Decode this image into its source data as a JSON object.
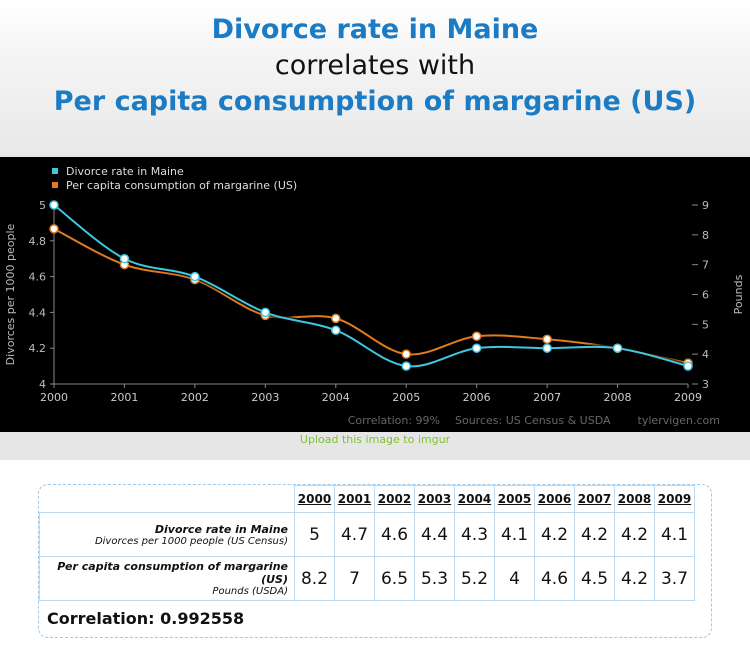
{
  "titles": {
    "line1": "Divorce rate in Maine",
    "line2": "correlates with",
    "line3": "Per capita consumption of margarine (US)"
  },
  "upload_link": "Upload this image to imgur",
  "chart_data": {
    "type": "line",
    "x": [
      2000,
      2001,
      2002,
      2003,
      2004,
      2005,
      2006,
      2007,
      2008,
      2009
    ],
    "series": [
      {
        "name": "Divorce rate in Maine",
        "axis": "left",
        "color": "#3ec8e0",
        "values": [
          5,
          4.7,
          4.6,
          4.4,
          4.3,
          4.1,
          4.2,
          4.2,
          4.2,
          4.1
        ]
      },
      {
        "name": "Per capita consumption of margarine (US)",
        "axis": "right",
        "color": "#e07c1e",
        "values": [
          8.2,
          7,
          6.5,
          5.3,
          5.2,
          4,
          4.6,
          4.5,
          4.2,
          3.7
        ]
      }
    ],
    "ylabel_left": "Divorces per 1000 people",
    "ylabel_right": "Pounds",
    "ylim_left": [
      4,
      5
    ],
    "ylim_right": [
      3,
      9
    ],
    "yticks_left": [
      "4",
      "4.2",
      "4.4",
      "4.6",
      "4.8",
      "5"
    ],
    "yticks_right": [
      "3",
      "4",
      "5",
      "6",
      "7",
      "8",
      "9"
    ],
    "legend_position": "top-left",
    "footer": {
      "correlation": "Correlation: 99%",
      "sources": "Sources: US Census & USDA",
      "site": "tylervigen.com"
    }
  },
  "table": {
    "years": [
      "2000",
      "2001",
      "2002",
      "2003",
      "2004",
      "2005",
      "2006",
      "2007",
      "2008",
      "2009"
    ],
    "rows": [
      {
        "label": "Divorce rate in Maine",
        "sublabel": "Divorces per 1000 people (US Census)",
        "values": [
          "5",
          "4.7",
          "4.6",
          "4.4",
          "4.3",
          "4.1",
          "4.2",
          "4.2",
          "4.2",
          "4.1"
        ]
      },
      {
        "label": "Per capita consumption of margarine (US)",
        "sublabel": "Pounds (USDA)",
        "values": [
          "8.2",
          "7",
          "6.5",
          "5.3",
          "5.2",
          "4",
          "4.6",
          "4.5",
          "4.2",
          "3.7"
        ]
      }
    ],
    "correlation": "Correlation: 0.992558"
  }
}
